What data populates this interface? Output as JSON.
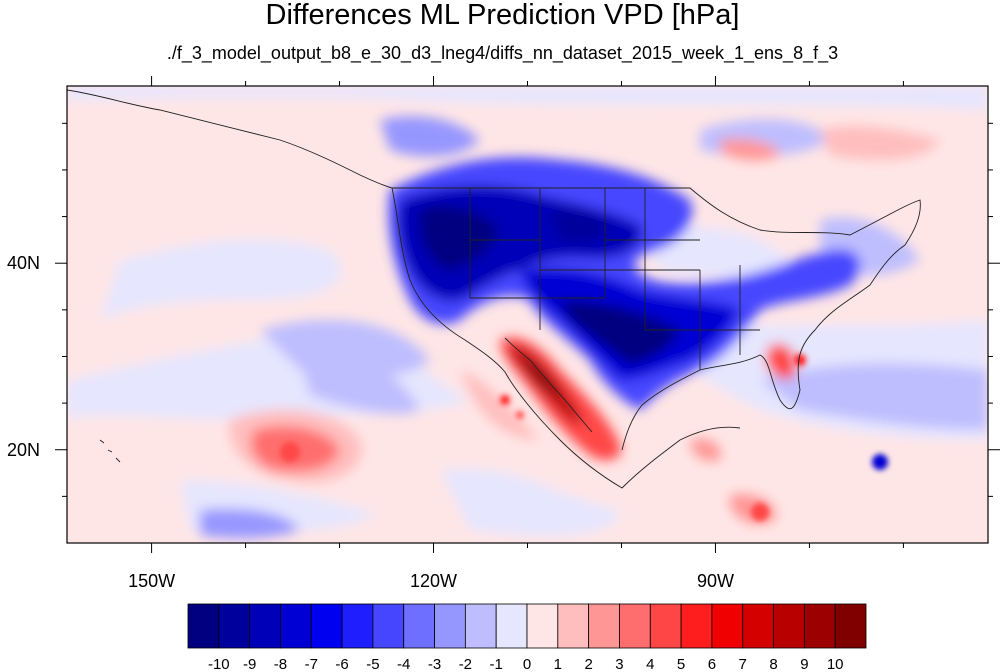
{
  "title": "Differences ML Prediction VPD [hPa]",
  "subtitle": "./f_3_model_output_b8_e_30_d3_lneg4/diffs_nn_dataset_2015_week_1_ens_8_f_3",
  "map": {
    "lon_range": [
      -159,
      -61
    ],
    "lat_range": [
      10,
      59
    ],
    "x_ticks": [
      {
        "lon": -150,
        "label": "150W"
      },
      {
        "lon": -120,
        "label": "120W"
      },
      {
        "lon": -90,
        "label": "90W"
      }
    ],
    "y_ticks": [
      {
        "lat": 40,
        "label": "40N"
      },
      {
        "lat": 20,
        "label": "20N"
      }
    ]
  },
  "colorbar": {
    "levels": [
      "-10",
      "-9",
      "-8",
      "-7",
      "-6",
      "-5",
      "-4",
      "-3",
      "-2",
      "-1",
      "0",
      "1",
      "2",
      "3",
      "4",
      "5",
      "6",
      "7",
      "8",
      "9",
      "10"
    ],
    "colors": [
      "#000080",
      "#00009c",
      "#0000b8",
      "#0000d4",
      "#0000f0",
      "#1e1eff",
      "#4646ff",
      "#6e6eff",
      "#9696ff",
      "#bebeff",
      "#e6e6ff",
      "#ffe6e6",
      "#ffbebe",
      "#ff9696",
      "#ff6e6e",
      "#ff4646",
      "#ff1e1e",
      "#f00000",
      "#d40000",
      "#b80000",
      "#9c0000",
      "#800000"
    ]
  }
}
